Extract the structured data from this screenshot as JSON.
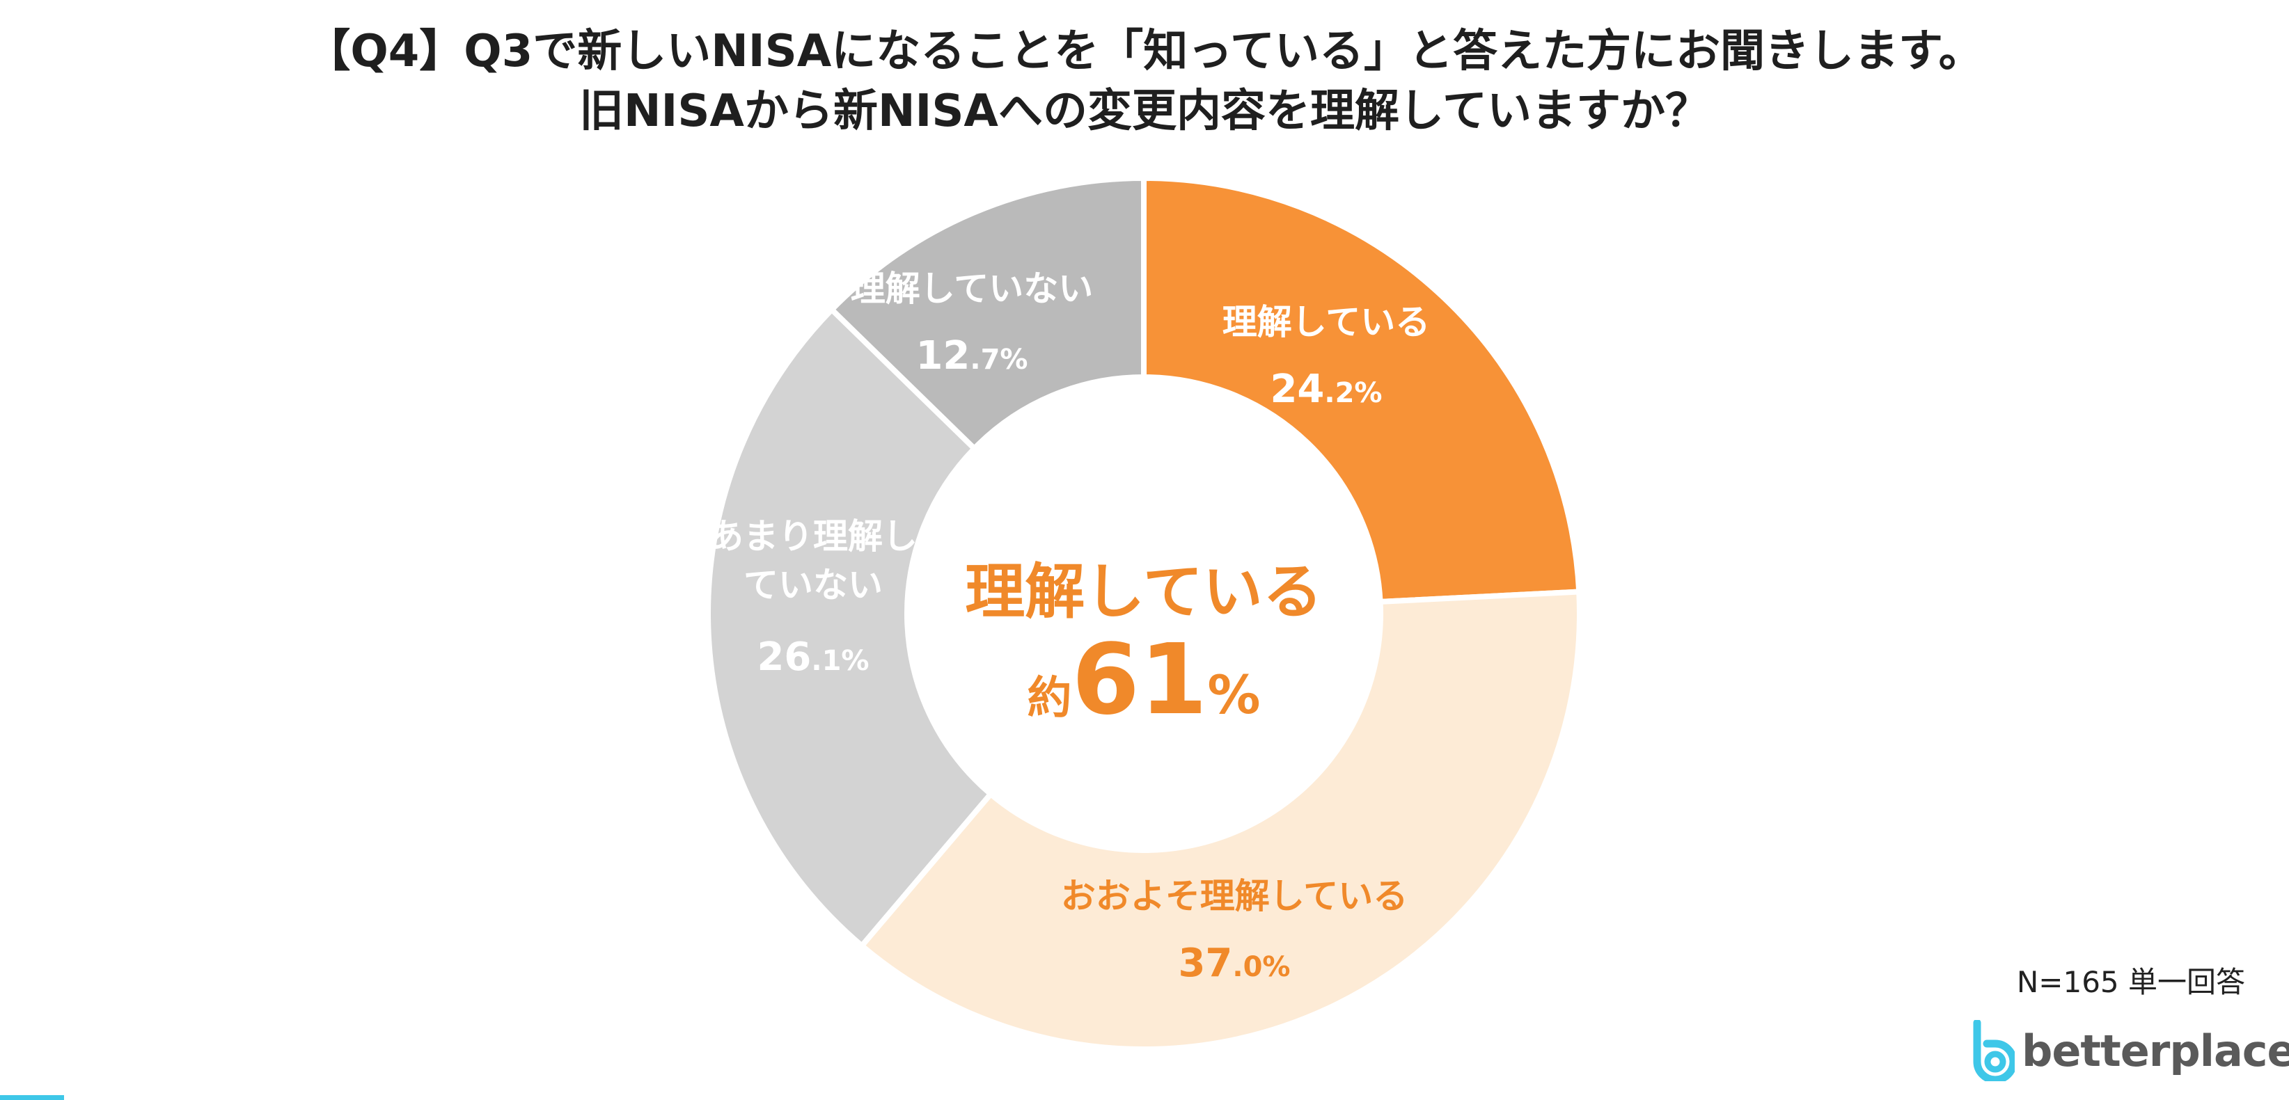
{
  "header": {
    "line1": "【Q4】Q3で新しいNISAになることを「知っている」と答えた方にお聞きします。",
    "line2": "旧NISAから新NISAへの変更内容を理解していますか？"
  },
  "chart_data": {
    "type": "pie",
    "donut": true,
    "categories": [
      "理解している",
      "おおよそ理解している",
      "あまり理解していない",
      "理解していない"
    ],
    "values": [
      24.2,
      37.0,
      26.1,
      12.7
    ],
    "value_labels": [
      "24.2%",
      "37.0%",
      "26.1%",
      "12.7%"
    ],
    "colors": [
      "#f79237",
      "#fdebd6",
      "#d3d3d3",
      "#bababa"
    ],
    "label_colors": [
      "#ffffff",
      "#f0892a",
      "#ffffff",
      "#ffffff"
    ],
    "center_label": {
      "line1": "理解している",
      "prefix": "約",
      "number": "61",
      "suffix": "%",
      "color": "#f0892a"
    },
    "legend": "none"
  },
  "footer": {
    "note": "N=165 単一回答",
    "brand": "betterplace",
    "brand_colors": [
      "#3ec7e8",
      "#5a5a5a"
    ]
  }
}
